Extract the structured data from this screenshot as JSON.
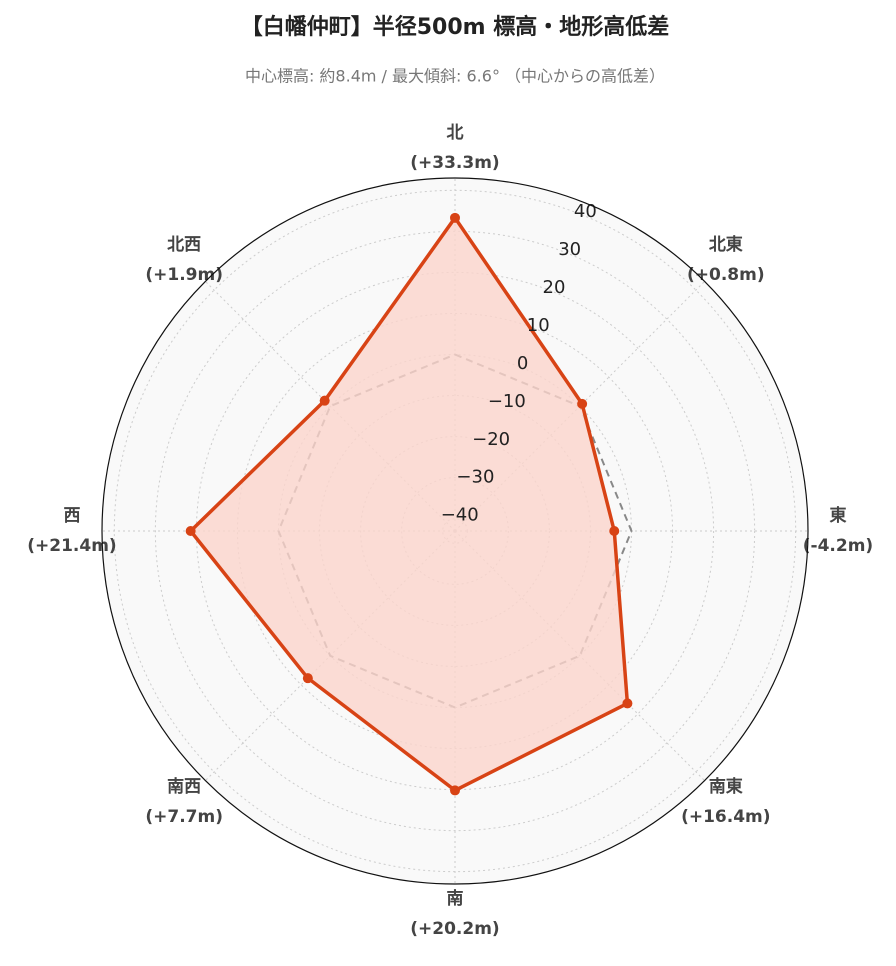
{
  "chart_data": {
    "type": "radar",
    "title": "【白幡仲町】半径500m 標高・地形高低差",
    "subtitle": "中心標高: 約8.4m / 最大傾斜: 6.6° （中心からの高低差）",
    "categories": [
      "北",
      "北東",
      "東",
      "南東",
      "南",
      "南西",
      "西",
      "北西"
    ],
    "series": [
      {
        "color": "#d84315",
        "fill": "#fbd5cc",
        "values": [
          33.3,
          0.8,
          -4.2,
          16.4,
          20.2,
          7.7,
          21.4,
          1.9
        ],
        "value_labels": [
          "(+33.3m)",
          "(+0.8m)",
          "(-4.2m)",
          "(+16.4m)",
          "(+20.2m)",
          "(+7.7m)",
          "(+21.4m)",
          "(+1.9m)"
        ]
      },
      {
        "color": "#888888",
        "dash": true,
        "values": [
          0,
          0,
          0,
          0,
          0,
          0,
          0,
          0
        ]
      }
    ],
    "rlim": [
      -43,
      43
    ],
    "rticks": [
      {
        "value": -40,
        "label": "−40"
      },
      {
        "value": -30,
        "label": "−30"
      },
      {
        "value": -20,
        "label": "−20"
      },
      {
        "value": -10,
        "label": "−10"
      },
      0,
      10,
      20,
      30,
      40
    ],
    "grid": true
  }
}
